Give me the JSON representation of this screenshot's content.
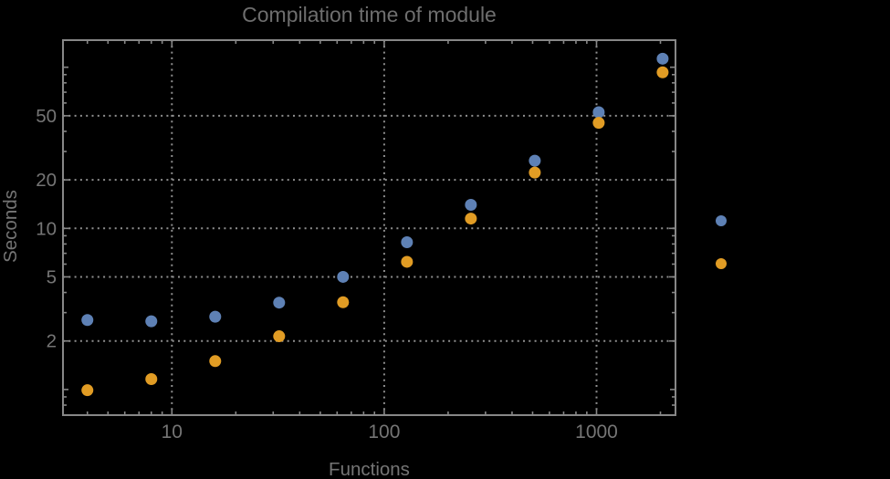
{
  "chart_data": {
    "type": "scatter",
    "title": "Compilation time of module",
    "xlabel": "Functions",
    "ylabel": "Seconds",
    "x_scale": "log",
    "y_scale": "log",
    "x_range": [
      3.07,
      2344
    ],
    "y_range": [
      0.69,
      147
    ],
    "grid": "dotted gridlines at labeled ticks only",
    "legend_position": "right-outside, marker dots only (labels not visible)",
    "x_ticks": [
      {
        "value": 10,
        "label": "10"
      },
      {
        "value": 100,
        "label": "100"
      },
      {
        "value": 1000,
        "label": "1000"
      }
    ],
    "y_ticks": [
      {
        "value": 2,
        "label": "2"
      },
      {
        "value": 5,
        "label": "5"
      },
      {
        "value": 10,
        "label": "10"
      },
      {
        "value": 20,
        "label": "20"
      },
      {
        "value": 50,
        "label": "50"
      }
    ],
    "y_unlabeled_decade_ticks": [
      1,
      100
    ],
    "x": [
      4,
      8,
      16,
      32,
      64,
      128,
      256,
      512,
      1024,
      2048
    ],
    "series": [
      {
        "name": "series-1-blue",
        "color": "#5E81B5",
        "values": [
          2.7,
          2.65,
          2.83,
          3.46,
          5.0,
          8.2,
          14.0,
          26.3,
          52.6,
          113
        ]
      },
      {
        "name": "series-2-orange",
        "color": "#E19C24",
        "values": [
          0.99,
          1.16,
          1.5,
          2.14,
          3.48,
          6.2,
          11.5,
          22.2,
          45.2,
          93
        ]
      }
    ],
    "legend_markers": [
      {
        "series": "series-1-blue",
        "color": "#5E81B5"
      },
      {
        "series": "series-2-orange",
        "color": "#E19C24"
      }
    ]
  },
  "colors": {
    "background": "#000000",
    "frame": "#878787",
    "grid": "#8f8f8f",
    "tick_text": "#757575",
    "title_text": "#6e6e6e",
    "series_blue": "#5E81B5",
    "series_orange": "#E19C24"
  }
}
